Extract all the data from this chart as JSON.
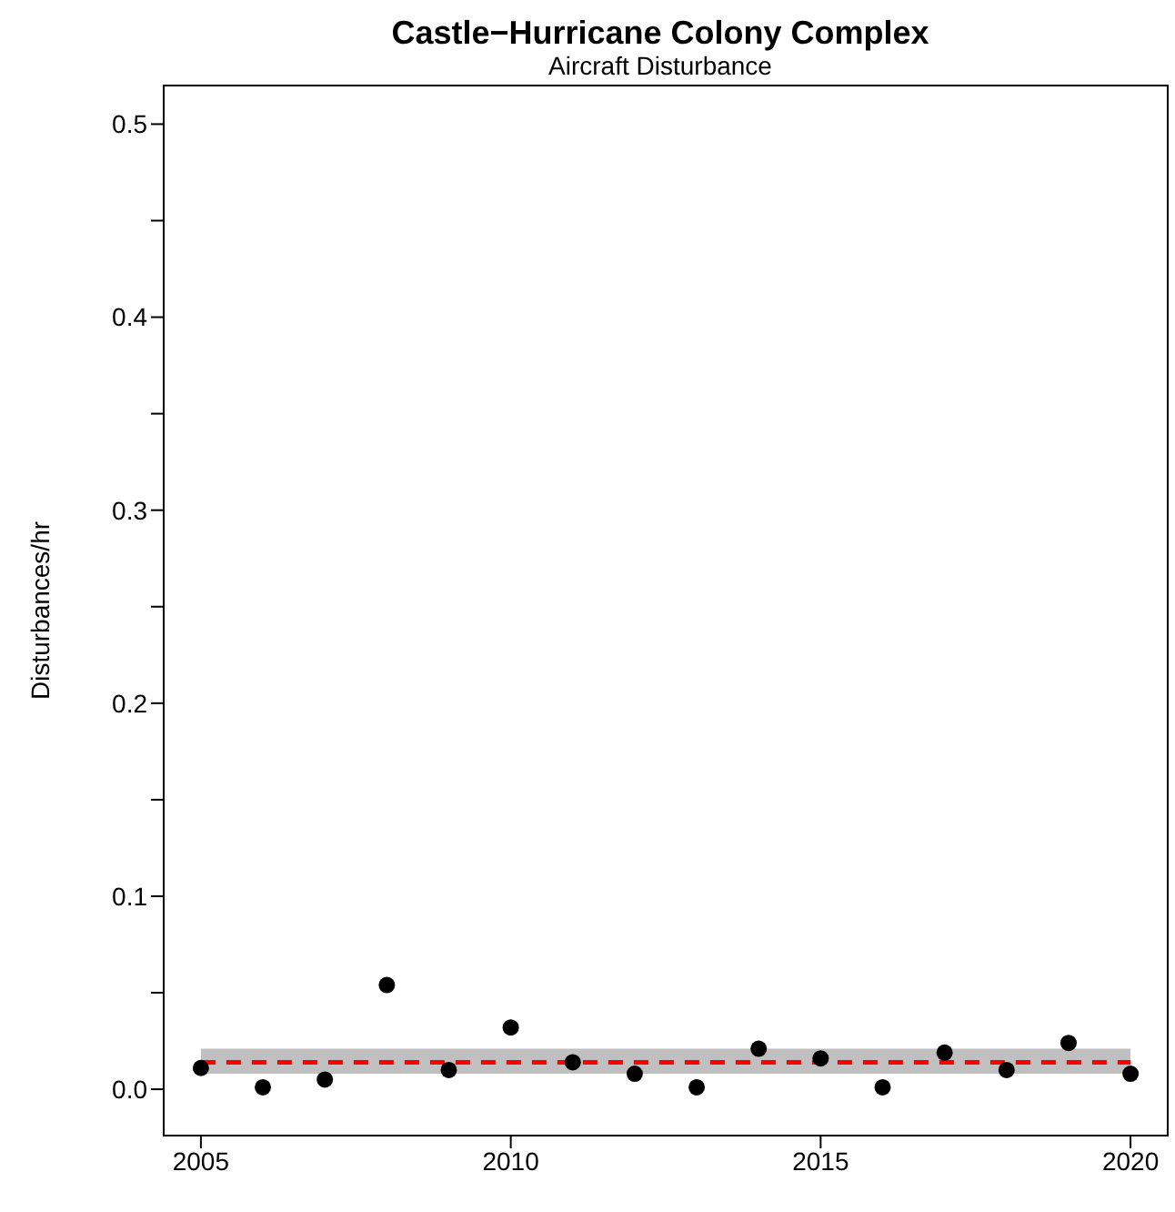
{
  "chart_data": {
    "type": "scatter",
    "title": "Castle−Hurricane Colony Complex",
    "subtitle": "Aircraft Disturbance",
    "ylabel": "Disturbances/hr",
    "x": [
      2005,
      2006,
      2007,
      2008,
      2009,
      2010,
      2011,
      2012,
      2013,
      2014,
      2015,
      2016,
      2017,
      2018,
      2019,
      2020
    ],
    "series": [
      {
        "color": "#000000",
        "values": [
          0.011,
          0.001,
          0.005,
          0.054,
          0.01,
          0.032,
          0.014,
          0.008,
          0.001,
          0.021,
          0.016,
          0.001,
          0.019,
          0.01,
          0.024,
          0.008
        ]
      }
    ],
    "ref_lines": [
      {
        "axis": "y",
        "value": 0.014,
        "color": "#ff0000",
        "line_style": "dashed"
      }
    ],
    "bands": [
      {
        "axis": "y",
        "from": 0.008,
        "to": 0.021,
        "color": "#c0c0c0"
      }
    ],
    "xlim": [
      2004.4,
      2020.6
    ],
    "xticks": [
      2005,
      2010,
      2015,
      2020
    ],
    "ylim": [
      -0.024,
      0.52
    ],
    "yticks": [
      {
        "value": 0,
        "label": "0.0"
      },
      {
        "value": 0.05,
        "label": null
      },
      {
        "value": 0.1,
        "label": "0.1"
      },
      {
        "value": 0.15,
        "label": null
      },
      {
        "value": 0.2,
        "label": "0.2"
      },
      {
        "value": 0.25,
        "label": null
      },
      {
        "value": 0.3,
        "label": "0.3"
      },
      {
        "value": 0.35,
        "label": null
      },
      {
        "value": 0.4,
        "label": "0.4"
      },
      {
        "value": 0.45,
        "label": null
      },
      {
        "value": 0.5,
        "label": "0.5"
      }
    ],
    "marker": "circle"
  }
}
